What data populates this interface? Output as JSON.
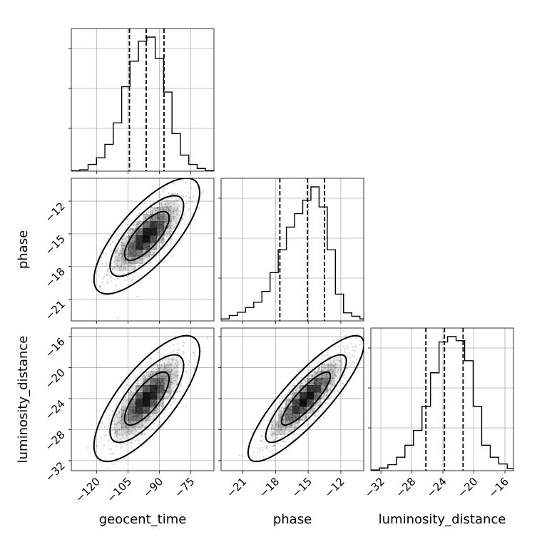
{
  "colors": {
    "ink": "#000000",
    "grid": "#b0b0b0",
    "scatter": "#555555",
    "density": "#000000"
  },
  "chart_data": [
    {
      "type": "histogram",
      "panel": "hist-geocent_time",
      "parameter": "geocent_time",
      "xlim": [
        -132,
        -64
      ],
      "bins": [
        -132,
        -128,
        -124,
        -120,
        -116,
        -112,
        -108,
        -104,
        -100,
        -96,
        -92,
        -88,
        -84,
        -80,
        -76,
        -72,
        -68,
        -64
      ],
      "counts": [
        0.003,
        0.01,
        0.05,
        0.1,
        0.2,
        0.36,
        0.63,
        0.82,
        0.97,
        1.0,
        0.84,
        0.59,
        0.28,
        0.12,
        0.05,
        0.02,
        0.004
      ],
      "quantiles": [
        -104.3,
        -96.3,
        -87.8
      ],
      "xticks": [
        -120,
        -105,
        -90,
        -75
      ],
      "xticklabels": [
        "−120",
        "−105",
        "−90",
        "−75"
      ],
      "grid": true
    },
    {
      "type": "histogram",
      "panel": "hist-phase",
      "parameter": "phase",
      "xlim": [
        -23,
        -9.9
      ],
      "bins": [
        -23,
        -22.25,
        -21.5,
        -20.75,
        -20,
        -19.25,
        -18.5,
        -17.75,
        -17,
        -16.25,
        -15.5,
        -14.75,
        -14,
        -13.25,
        -12.5,
        -11.75,
        -11,
        -10.25,
        -9.9
      ],
      "counts": [
        0.015,
        0.04,
        0.065,
        0.1,
        0.14,
        0.22,
        0.36,
        0.53,
        0.7,
        0.8,
        0.9,
        1.0,
        0.85,
        0.53,
        0.2,
        0.06,
        0.035,
        0.015
      ],
      "quantiles": [
        -17.6,
        -15.06,
        -13.5
      ],
      "xticks": [
        -21,
        -18,
        -15,
        -12
      ],
      "xticklabels": [
        "−21",
        "−18",
        "−15",
        "−12"
      ],
      "grid": true
    },
    {
      "type": "histogram",
      "panel": "hist-luminosity_distance",
      "parameter": "luminosity_distance",
      "xlim": [
        -33.3,
        -14.9
      ],
      "bins": [
        -33.3,
        -32.2,
        -31.1,
        -30,
        -28.9,
        -27.8,
        -26.7,
        -25.6,
        -24.5,
        -23.4,
        -22.3,
        -21.2,
        -20.1,
        -19,
        -17.9,
        -16.8,
        -15.7,
        -14.9
      ],
      "counts": [
        0.005,
        0.02,
        0.045,
        0.1,
        0.19,
        0.3,
        0.48,
        0.73,
        0.96,
        1.0,
        0.97,
        0.82,
        0.48,
        0.19,
        0.1,
        0.05,
        0.015
      ],
      "quantiles": [
        -26.2,
        -23.8,
        -21.4
      ],
      "xticks": [
        -32,
        -28,
        -24,
        -20,
        -16
      ],
      "xticklabels": [
        "−32",
        "−28",
        "−24",
        "−20",
        "−16"
      ],
      "grid": true
    },
    {
      "type": "scatter",
      "panel": "scatter-geocent_time-phase",
      "x_parameter": "geocent_time",
      "y_parameter": "phase",
      "xlim": [
        -132,
        -64
      ],
      "ylim": [
        -23,
        -9.9
      ],
      "mean": [
        -96,
        -15.2
      ],
      "sd": [
        9,
        1.9
      ],
      "correlation": 0.75,
      "contours": [
        {
          "level": 0.5,
          "radius": 1.18
        },
        {
          "level": 0.85,
          "radius": 1.95
        },
        {
          "level": 0.98,
          "radius": 2.8
        }
      ],
      "xticks": [
        -120,
        -105,
        -90,
        -75
      ],
      "yticks": [
        -21,
        -18,
        -15,
        -12
      ],
      "yticklabels": [
        "−21",
        "−18",
        "−15",
        "−12"
      ],
      "grid": true
    },
    {
      "type": "scatter",
      "panel": "scatter-geocent_time-luminosity_distance",
      "x_parameter": "geocent_time",
      "y_parameter": "luminosity_distance",
      "xlim": [
        -132,
        -64
      ],
      "ylim": [
        -33.3,
        -14.9
      ],
      "mean": [
        -96,
        -24
      ],
      "sd": [
        9,
        2.9
      ],
      "correlation": 0.75,
      "contours": [
        {
          "level": 0.5,
          "radius": 1.18
        },
        {
          "level": 0.85,
          "radius": 1.95
        },
        {
          "level": 0.98,
          "radius": 2.8
        }
      ],
      "xticks": [
        -120,
        -105,
        -90,
        -75
      ],
      "xticklabels": [
        "−120",
        "−105",
        "−90",
        "−75"
      ],
      "yticks": [
        -32,
        -28,
        -24,
        -20,
        -16
      ],
      "yticklabels": [
        "−32",
        "−28",
        "−24",
        "−20",
        "−16"
      ],
      "grid": true
    },
    {
      "type": "scatter",
      "panel": "scatter-phase-luminosity_distance",
      "x_parameter": "phase",
      "y_parameter": "luminosity_distance",
      "xlim": [
        -23,
        -9.9
      ],
      "ylim": [
        -33.3,
        -14.9
      ],
      "mean": [
        -15.2,
        -24
      ],
      "sd": [
        1.9,
        2.9
      ],
      "correlation": 0.86,
      "contours": [
        {
          "level": 0.5,
          "radius": 1.18
        },
        {
          "level": 0.85,
          "radius": 1.95
        },
        {
          "level": 0.98,
          "radius": 2.8
        }
      ],
      "xticks": [
        -21,
        -18,
        -15,
        -12
      ],
      "xticklabels": [
        "−21",
        "−18",
        "−15",
        "−12"
      ],
      "yticks": [
        -32,
        -28,
        -24,
        -20,
        -16
      ],
      "grid": true
    }
  ],
  "axis_labels": {
    "bottom": [
      "geocent_time",
      "phase",
      "luminosity_distance"
    ],
    "left": [
      "phase",
      "luminosity_distance"
    ]
  }
}
